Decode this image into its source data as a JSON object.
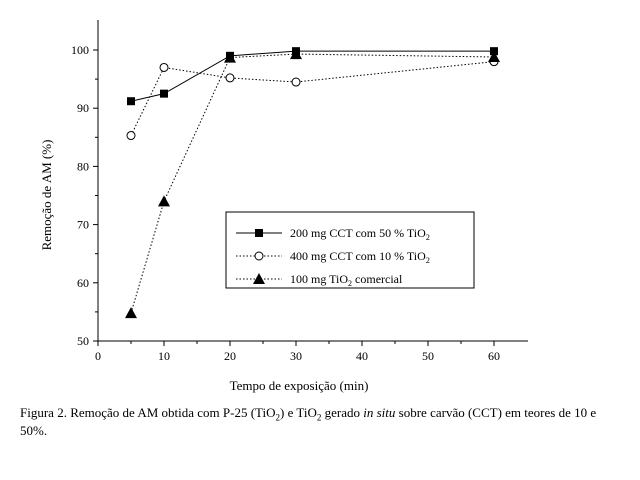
{
  "chart_data": {
    "type": "line",
    "xlabel": "Tempo de exposição (min)",
    "ylabel": "Remoção de AM (%)",
    "xlim": [
      0,
      65
    ],
    "ylim": [
      50,
      102
    ],
    "xticks": [
      0,
      10,
      20,
      30,
      40,
      50,
      60
    ],
    "yticks": [
      50,
      60,
      70,
      80,
      90,
      100
    ],
    "grid": false,
    "legend_position": "center-right",
    "series": [
      {
        "name_parts": [
          "200 mg CCT com 50 % TiO",
          "2",
          ""
        ],
        "marker": "filled-square",
        "line": "solid",
        "x": [
          5,
          10,
          20,
          30,
          60
        ],
        "y": [
          91.2,
          92.5,
          99.0,
          99.8,
          99.8
        ]
      },
      {
        "name_parts": [
          "400 mg CCT com 10 % TiO",
          "2",
          ""
        ],
        "marker": "open-circle",
        "line": "dotted",
        "x": [
          5,
          10,
          20,
          30,
          60
        ],
        "y": [
          85.3,
          97.0,
          95.2,
          94.5,
          98.0
        ]
      },
      {
        "name_parts": [
          "100 mg TiO",
          "2",
          " comercial"
        ],
        "marker": "filled-triangle",
        "line": "dotted",
        "x": [
          5,
          10,
          20,
          30,
          60
        ],
        "y": [
          54.8,
          74.0,
          98.7,
          99.3,
          98.8
        ]
      }
    ]
  },
  "caption": {
    "p1": "Figura 2. Remoção de AM obtida com P-25 (TiO",
    "p1_sub": "2",
    "p2": ") e TiO",
    "p2_sub": "2",
    "p3": " gerado ",
    "p3_italic": "in situ",
    "p4": " sobre carvão (CCT) em teores de 10 e 50%."
  }
}
